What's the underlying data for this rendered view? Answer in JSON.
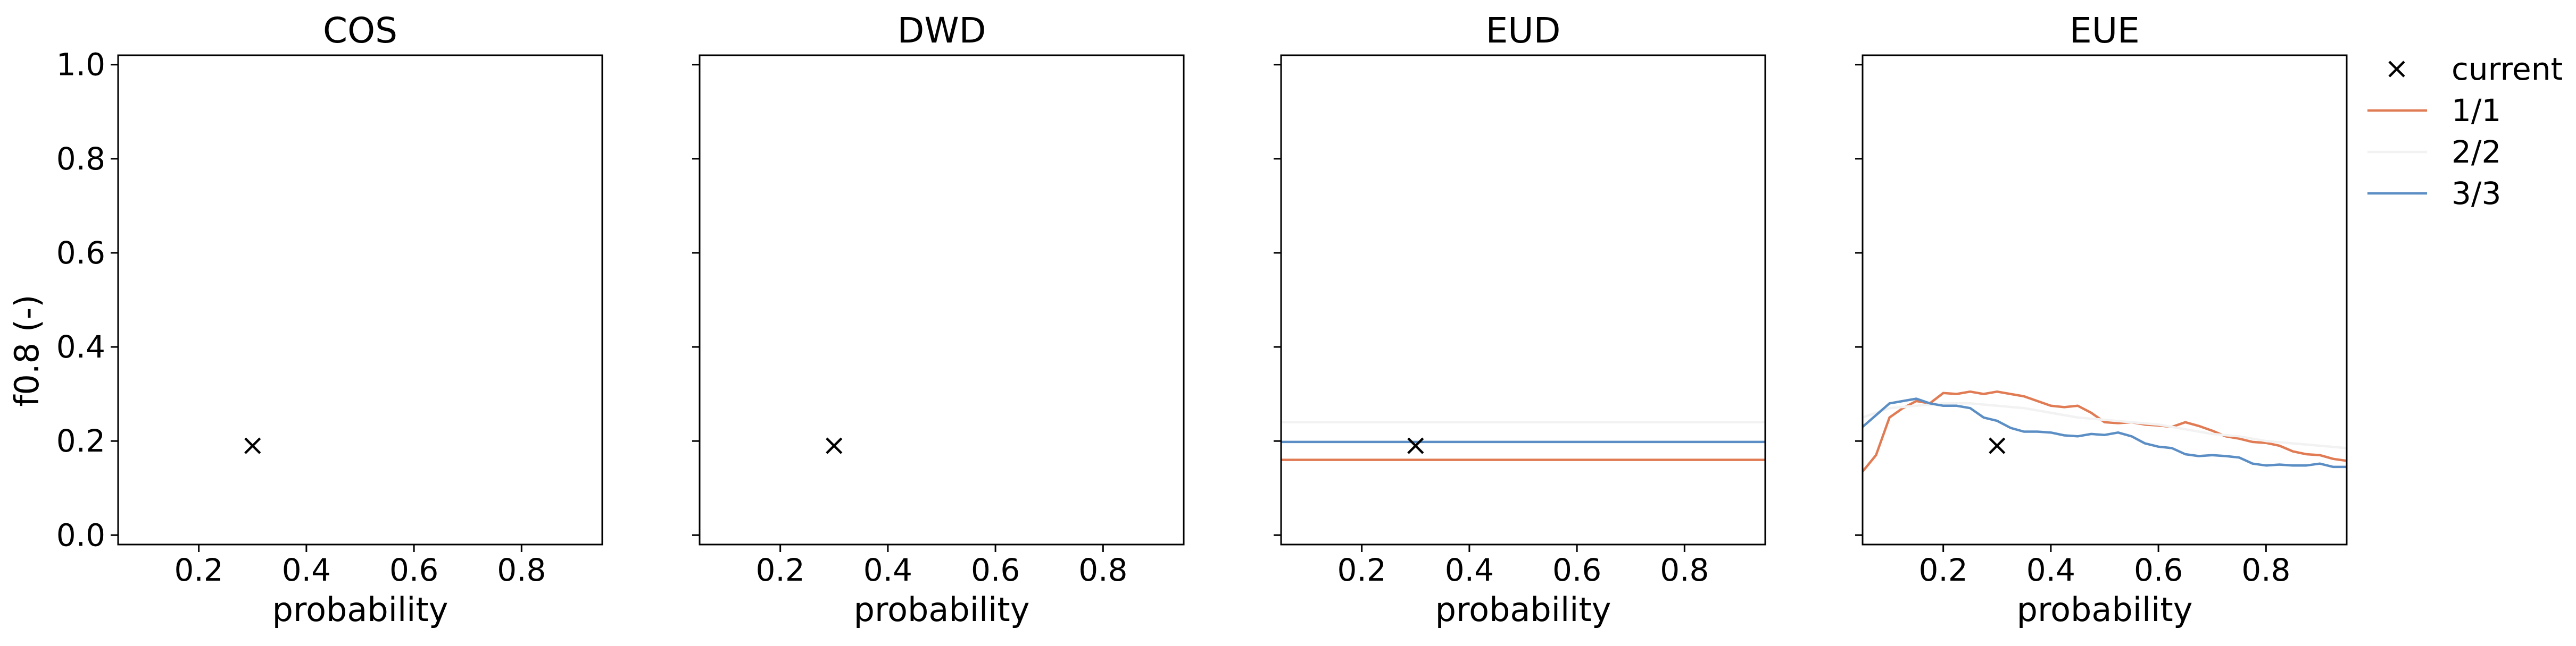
{
  "chart_data": {
    "type": "line",
    "ylabel": "f0.8 (-)",
    "xlim": [
      0.05,
      0.95
    ],
    "ylim": [
      -0.02,
      1.02
    ],
    "xticks": [
      0.2,
      0.4,
      0.6,
      0.8
    ],
    "xtick_labels": [
      "0.2",
      "0.4",
      "0.6",
      "0.8"
    ],
    "yticks": [
      0.0,
      0.2,
      0.4,
      0.6,
      0.8,
      1.0
    ],
    "ytick_labels": [
      "0.0",
      "0.2",
      "0.4",
      "0.6",
      "0.8",
      "1.0"
    ],
    "legend": {
      "placement": "outside-top-right",
      "entries": [
        {
          "label": "current",
          "marker": "x",
          "color": "#000000"
        },
        {
          "label": "1/1",
          "color": "#e07b54"
        },
        {
          "label": "2/2",
          "color": "#f2f2f2"
        },
        {
          "label": "3/3",
          "color": "#5b8ec4"
        }
      ]
    },
    "panels": [
      {
        "title": "COS",
        "xlabel": "probability",
        "current": {
          "x": 0.3,
          "y": 0.19
        },
        "series": []
      },
      {
        "title": "DWD",
        "xlabel": "probability",
        "current": {
          "x": 0.3,
          "y": 0.19
        },
        "series": []
      },
      {
        "title": "EUD",
        "xlabel": "probability",
        "current": {
          "x": 0.3,
          "y": 0.19
        },
        "series": [
          {
            "name": "1/1",
            "color": "#e07b54",
            "x": [
              0.05,
              0.95
            ],
            "y": [
              0.16,
              0.16
            ]
          },
          {
            "name": "2/2",
            "color": "#f2f2f2",
            "x": [
              0.05,
              0.95
            ],
            "y": [
              0.24,
              0.24
            ]
          },
          {
            "name": "3/3",
            "color": "#5b8ec4",
            "x": [
              0.05,
              0.95
            ],
            "y": [
              0.198,
              0.198
            ]
          }
        ]
      },
      {
        "title": "EUE",
        "xlabel": "probability",
        "current": {
          "x": 0.3,
          "y": 0.19
        },
        "series": [
          {
            "name": "1/1",
            "color": "#e07b54",
            "x": [
              0.05,
              0.075,
              0.1,
              0.125,
              0.15,
              0.175,
              0.2,
              0.225,
              0.25,
              0.275,
              0.3,
              0.325,
              0.35,
              0.375,
              0.4,
              0.425,
              0.45,
              0.475,
              0.5,
              0.525,
              0.55,
              0.575,
              0.6,
              0.625,
              0.65,
              0.675,
              0.7,
              0.725,
              0.75,
              0.775,
              0.8,
              0.825,
              0.85,
              0.875,
              0.9,
              0.925,
              0.95
            ],
            "y": [
              0.135,
              0.17,
              0.25,
              0.27,
              0.285,
              0.28,
              0.302,
              0.3,
              0.305,
              0.3,
              0.305,
              0.3,
              0.295,
              0.285,
              0.275,
              0.272,
              0.275,
              0.26,
              0.24,
              0.238,
              0.24,
              0.235,
              0.233,
              0.23,
              0.24,
              0.232,
              0.222,
              0.21,
              0.205,
              0.198,
              0.196,
              0.19,
              0.178,
              0.172,
              0.17,
              0.162,
              0.158
            ]
          },
          {
            "name": "2/2",
            "color": "#f2f2f2",
            "x": [
              0.05,
              0.1,
              0.15,
              0.2,
              0.25,
              0.3,
              0.35,
              0.4,
              0.45,
              0.5,
              0.55,
              0.6,
              0.65,
              0.7,
              0.75,
              0.8,
              0.85,
              0.9,
              0.95
            ],
            "y": [
              0.25,
              0.27,
              0.275,
              0.28,
              0.28,
              0.275,
              0.27,
              0.26,
              0.25,
              0.245,
              0.24,
              0.235,
              0.225,
              0.215,
              0.21,
              0.2,
              0.195,
              0.19,
              0.185
            ]
          },
          {
            "name": "3/3",
            "color": "#5b8ec4",
            "x": [
              0.05,
              0.075,
              0.1,
              0.125,
              0.15,
              0.175,
              0.2,
              0.225,
              0.25,
              0.275,
              0.3,
              0.325,
              0.35,
              0.375,
              0.4,
              0.425,
              0.45,
              0.475,
              0.5,
              0.525,
              0.55,
              0.575,
              0.6,
              0.625,
              0.65,
              0.675,
              0.7,
              0.725,
              0.75,
              0.775,
              0.8,
              0.825,
              0.85,
              0.875,
              0.9,
              0.925,
              0.95
            ],
            "y": [
              0.23,
              0.255,
              0.28,
              0.285,
              0.29,
              0.28,
              0.275,
              0.275,
              0.27,
              0.25,
              0.243,
              0.228,
              0.22,
              0.22,
              0.218,
              0.212,
              0.21,
              0.215,
              0.213,
              0.218,
              0.21,
              0.195,
              0.188,
              0.185,
              0.172,
              0.168,
              0.17,
              0.168,
              0.165,
              0.152,
              0.148,
              0.15,
              0.148,
              0.148,
              0.152,
              0.145,
              0.145
            ]
          }
        ]
      }
    ]
  }
}
